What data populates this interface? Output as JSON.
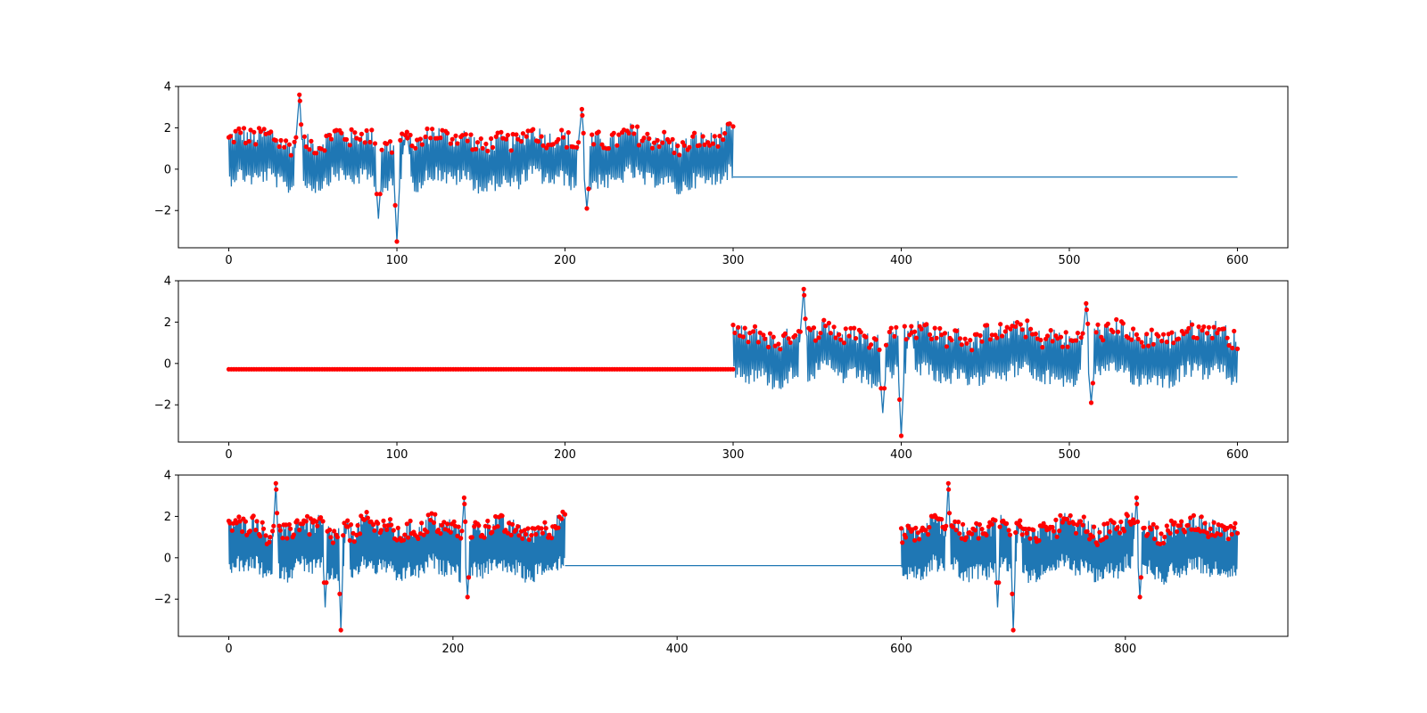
{
  "chart_data": [
    {
      "type": "line",
      "title": "",
      "xlabel": "",
      "ylabel": "",
      "xlim": [
        -30,
        630
      ],
      "ylim": [
        -3.8,
        4.0
      ],
      "xticks": [
        0,
        100,
        200,
        300,
        400,
        500,
        600
      ],
      "yticks": [
        -2,
        0,
        2,
        4
      ],
      "grid": false,
      "series": [
        {
          "type": "line",
          "color": "#1f77b4",
          "segments": [
            {
              "kind": "signal",
              "x_start": 0,
              "x_end": 300,
              "spikes": [
                [
                  42,
                  3.6
                ],
                [
                  89,
                  -2.4
                ],
                [
                  100,
                  -3.5
                ],
                [
                  106,
                  1.8
                ],
                [
                  210,
                  2.9
                ],
                [
                  213,
                  -1.9
                ]
              ]
            },
            {
              "kind": "flat",
              "x_start": 300,
              "x_end": 600,
              "y": -0.38
            }
          ]
        },
        {
          "type": "scatter",
          "color": "#ff0000",
          "segments": [
            {
              "kind": "peaks",
              "x_start": 0,
              "x_end": 300
            }
          ]
        }
      ]
    },
    {
      "type": "line",
      "title": "",
      "xlabel": "",
      "ylabel": "",
      "xlim": [
        -30,
        630
      ],
      "ylim": [
        -3.8,
        4.0
      ],
      "xticks": [
        0,
        100,
        200,
        300,
        400,
        500,
        600
      ],
      "yticks": [
        -2,
        0,
        2,
        4
      ],
      "grid": false,
      "series": [
        {
          "type": "line",
          "color": "#1f77b4",
          "segments": [
            {
              "kind": "flat",
              "x_start": 0,
              "x_end": 300,
              "y": -0.28
            },
            {
              "kind": "signal",
              "x_start": 300,
              "x_end": 600,
              "spikes": [
                [
                  342,
                  3.6
                ],
                [
                  389,
                  -2.4
                ],
                [
                  400,
                  -3.5
                ],
                [
                  406,
                  1.8
                ],
                [
                  510,
                  2.9
                ],
                [
                  513,
                  -1.9
                ]
              ]
            }
          ]
        },
        {
          "type": "scatter",
          "color": "#ff0000",
          "segments": [
            {
              "kind": "dense",
              "x_start": 0,
              "x_end": 300,
              "y": -0.28
            },
            {
              "kind": "peaks",
              "x_start": 300,
              "x_end": 600
            }
          ]
        }
      ]
    },
    {
      "type": "line",
      "title": "",
      "xlabel": "",
      "ylabel": "",
      "xlim": [
        -45,
        945
      ],
      "ylim": [
        -3.8,
        4.0
      ],
      "xticks": [
        0,
        200,
        400,
        600,
        800
      ],
      "yticks": [
        -2,
        0,
        2,
        4
      ],
      "grid": false,
      "series": [
        {
          "type": "line",
          "color": "#1f77b4",
          "segments": [
            {
              "kind": "signal",
              "x_start": 0,
              "x_end": 300,
              "spikes": [
                [
                  42,
                  3.6
                ],
                [
                  86,
                  -2.4
                ],
                [
                  100,
                  -3.5
                ],
                [
                  106,
                  1.8
                ],
                [
                  210,
                  2.9
                ],
                [
                  213,
                  -1.9
                ]
              ]
            },
            {
              "kind": "flat",
              "x_start": 300,
              "x_end": 600,
              "y": -0.38
            },
            {
              "kind": "signal",
              "x_start": 600,
              "x_end": 900,
              "spikes": [
                [
                  642,
                  3.6
                ],
                [
                  686,
                  -2.4
                ],
                [
                  700,
                  -3.5
                ],
                [
                  706,
                  1.8
                ],
                [
                  810,
                  2.9
                ],
                [
                  813,
                  -1.9
                ]
              ]
            }
          ]
        },
        {
          "type": "scatter",
          "color": "#ff0000",
          "segments": [
            {
              "kind": "peaks",
              "x_start": 0,
              "x_end": 300
            },
            {
              "kind": "peaks",
              "x_start": 600,
              "x_end": 900
            }
          ]
        }
      ]
    }
  ]
}
